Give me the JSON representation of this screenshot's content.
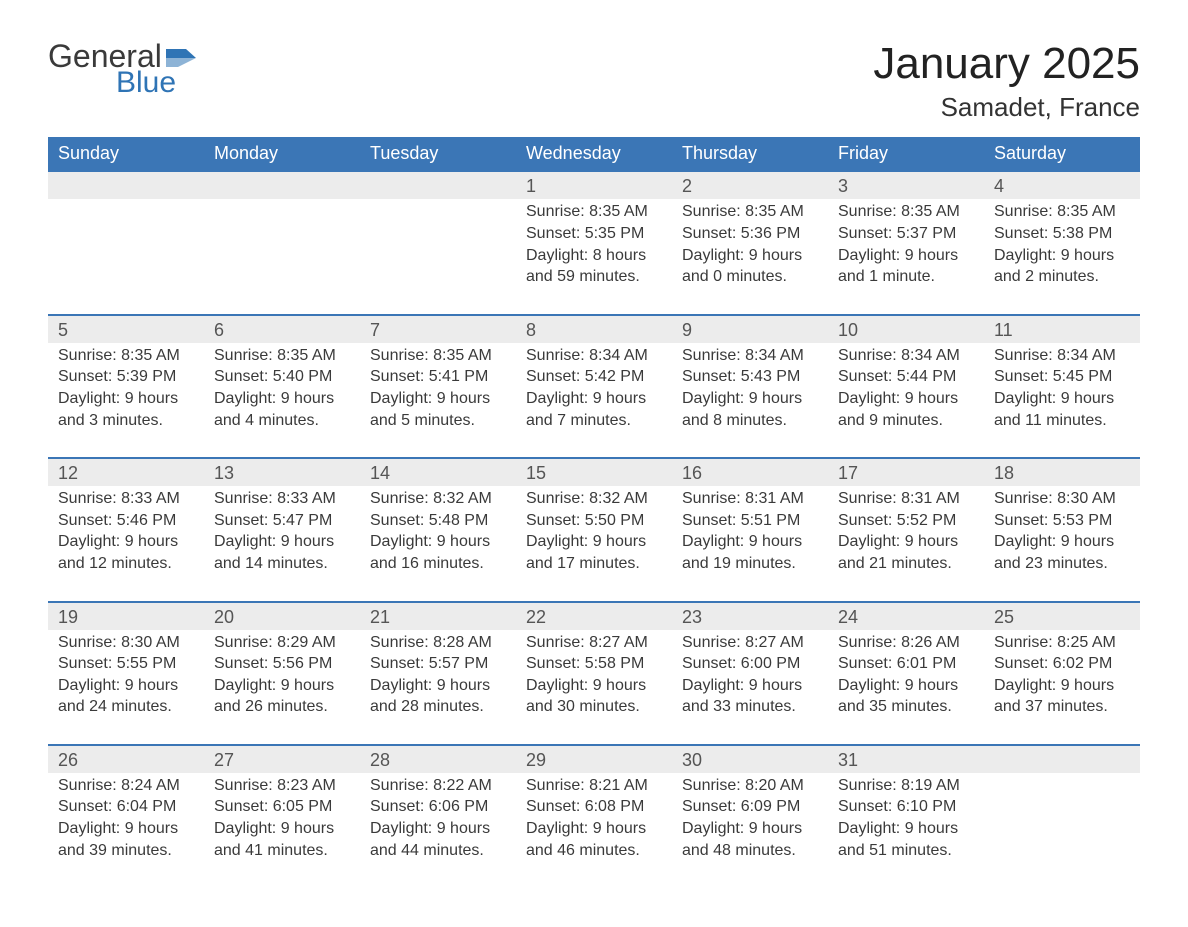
{
  "logo": {
    "text1": "General",
    "text2": "Blue",
    "color_dark": "#3a3a3a",
    "color_blue": "#2f74b5"
  },
  "title": "January 2025",
  "location": "Samadet, France",
  "colors": {
    "header_bg": "#3b76b6",
    "header_text": "#ffffff",
    "daynum_bg": "#ececec",
    "row_border": "#3b76b6",
    "text": "#3a3a3a",
    "daynum_text": "#555555",
    "page_bg": "#ffffff"
  },
  "day_headers": [
    "Sunday",
    "Monday",
    "Tuesday",
    "Wednesday",
    "Thursday",
    "Friday",
    "Saturday"
  ],
  "weeks": [
    {
      "nums": [
        "",
        "",
        "",
        "1",
        "2",
        "3",
        "4"
      ],
      "cells": [
        [],
        [],
        [],
        [
          "Sunrise: 8:35 AM",
          "Sunset: 5:35 PM",
          "Daylight: 8 hours",
          "and 59 minutes."
        ],
        [
          "Sunrise: 8:35 AM",
          "Sunset: 5:36 PM",
          "Daylight: 9 hours",
          "and 0 minutes."
        ],
        [
          "Sunrise: 8:35 AM",
          "Sunset: 5:37 PM",
          "Daylight: 9 hours",
          "and 1 minute."
        ],
        [
          "Sunrise: 8:35 AM",
          "Sunset: 5:38 PM",
          "Daylight: 9 hours",
          "and 2 minutes."
        ]
      ]
    },
    {
      "nums": [
        "5",
        "6",
        "7",
        "8",
        "9",
        "10",
        "11"
      ],
      "cells": [
        [
          "Sunrise: 8:35 AM",
          "Sunset: 5:39 PM",
          "Daylight: 9 hours",
          "and 3 minutes."
        ],
        [
          "Sunrise: 8:35 AM",
          "Sunset: 5:40 PM",
          "Daylight: 9 hours",
          "and 4 minutes."
        ],
        [
          "Sunrise: 8:35 AM",
          "Sunset: 5:41 PM",
          "Daylight: 9 hours",
          "and 5 minutes."
        ],
        [
          "Sunrise: 8:34 AM",
          "Sunset: 5:42 PM",
          "Daylight: 9 hours",
          "and 7 minutes."
        ],
        [
          "Sunrise: 8:34 AM",
          "Sunset: 5:43 PM",
          "Daylight: 9 hours",
          "and 8 minutes."
        ],
        [
          "Sunrise: 8:34 AM",
          "Sunset: 5:44 PM",
          "Daylight: 9 hours",
          "and 9 minutes."
        ],
        [
          "Sunrise: 8:34 AM",
          "Sunset: 5:45 PM",
          "Daylight: 9 hours",
          "and 11 minutes."
        ]
      ]
    },
    {
      "nums": [
        "12",
        "13",
        "14",
        "15",
        "16",
        "17",
        "18"
      ],
      "cells": [
        [
          "Sunrise: 8:33 AM",
          "Sunset: 5:46 PM",
          "Daylight: 9 hours",
          "and 12 minutes."
        ],
        [
          "Sunrise: 8:33 AM",
          "Sunset: 5:47 PM",
          "Daylight: 9 hours",
          "and 14 minutes."
        ],
        [
          "Sunrise: 8:32 AM",
          "Sunset: 5:48 PM",
          "Daylight: 9 hours",
          "and 16 minutes."
        ],
        [
          "Sunrise: 8:32 AM",
          "Sunset: 5:50 PM",
          "Daylight: 9 hours",
          "and 17 minutes."
        ],
        [
          "Sunrise: 8:31 AM",
          "Sunset: 5:51 PM",
          "Daylight: 9 hours",
          "and 19 minutes."
        ],
        [
          "Sunrise: 8:31 AM",
          "Sunset: 5:52 PM",
          "Daylight: 9 hours",
          "and 21 minutes."
        ],
        [
          "Sunrise: 8:30 AM",
          "Sunset: 5:53 PM",
          "Daylight: 9 hours",
          "and 23 minutes."
        ]
      ]
    },
    {
      "nums": [
        "19",
        "20",
        "21",
        "22",
        "23",
        "24",
        "25"
      ],
      "cells": [
        [
          "Sunrise: 8:30 AM",
          "Sunset: 5:55 PM",
          "Daylight: 9 hours",
          "and 24 minutes."
        ],
        [
          "Sunrise: 8:29 AM",
          "Sunset: 5:56 PM",
          "Daylight: 9 hours",
          "and 26 minutes."
        ],
        [
          "Sunrise: 8:28 AM",
          "Sunset: 5:57 PM",
          "Daylight: 9 hours",
          "and 28 minutes."
        ],
        [
          "Sunrise: 8:27 AM",
          "Sunset: 5:58 PM",
          "Daylight: 9 hours",
          "and 30 minutes."
        ],
        [
          "Sunrise: 8:27 AM",
          "Sunset: 6:00 PM",
          "Daylight: 9 hours",
          "and 33 minutes."
        ],
        [
          "Sunrise: 8:26 AM",
          "Sunset: 6:01 PM",
          "Daylight: 9 hours",
          "and 35 minutes."
        ],
        [
          "Sunrise: 8:25 AM",
          "Sunset: 6:02 PM",
          "Daylight: 9 hours",
          "and 37 minutes."
        ]
      ]
    },
    {
      "nums": [
        "26",
        "27",
        "28",
        "29",
        "30",
        "31",
        ""
      ],
      "cells": [
        [
          "Sunrise: 8:24 AM",
          "Sunset: 6:04 PM",
          "Daylight: 9 hours",
          "and 39 minutes."
        ],
        [
          "Sunrise: 8:23 AM",
          "Sunset: 6:05 PM",
          "Daylight: 9 hours",
          "and 41 minutes."
        ],
        [
          "Sunrise: 8:22 AM",
          "Sunset: 6:06 PM",
          "Daylight: 9 hours",
          "and 44 minutes."
        ],
        [
          "Sunrise: 8:21 AM",
          "Sunset: 6:08 PM",
          "Daylight: 9 hours",
          "and 46 minutes."
        ],
        [
          "Sunrise: 8:20 AM",
          "Sunset: 6:09 PM",
          "Daylight: 9 hours",
          "and 48 minutes."
        ],
        [
          "Sunrise: 8:19 AM",
          "Sunset: 6:10 PM",
          "Daylight: 9 hours",
          "and 51 minutes."
        ],
        []
      ]
    }
  ]
}
